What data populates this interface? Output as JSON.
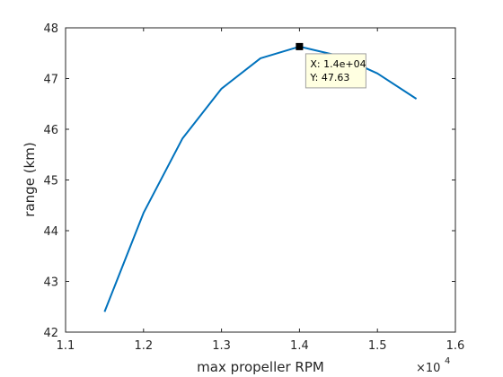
{
  "chart_data": {
    "type": "line",
    "title": "",
    "xlabel": "max propeller RPM",
    "ylabel": "range (km)",
    "x_exponent_label": "×10",
    "x_exponent_power": "4",
    "xlim": [
      1.1,
      1.6
    ],
    "ylim": [
      42,
      48
    ],
    "xticks": [
      1.1,
      1.2,
      1.3,
      1.4,
      1.5,
      1.6
    ],
    "xtick_labels": [
      "1.1",
      "1.2",
      "1.3",
      "1.4",
      "1.5",
      "1.6"
    ],
    "yticks": [
      42,
      43,
      44,
      45,
      46,
      47,
      48
    ],
    "ytick_labels": [
      "42",
      "43",
      "44",
      "45",
      "46",
      "47",
      "48"
    ],
    "grid": false,
    "series": [
      {
        "color": "#0072bd",
        "x": [
          1.15,
          1.2,
          1.25,
          1.3,
          1.35,
          1.4,
          1.45,
          1.5,
          1.55
        ],
        "y": [
          42.4,
          44.35,
          45.82,
          46.8,
          47.4,
          47.63,
          47.45,
          47.1,
          46.6
        ]
      }
    ],
    "datatip": {
      "x": 1.4,
      "y": 47.63,
      "x_text": "X: 1.4e+04",
      "y_text": "Y: 47.63"
    }
  }
}
